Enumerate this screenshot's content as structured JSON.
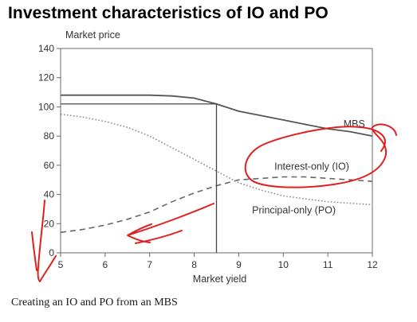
{
  "slide": {
    "title": "Investment characteristics of  IO and PO",
    "caption": "Creating an IO and PO from an MBS"
  },
  "chart_data": {
    "type": "line",
    "title": "",
    "xlabel": "Market yield",
    "ylabel": "Market price",
    "xlim": [
      5,
      12
    ],
    "ylim": [
      0,
      140
    ],
    "xticks": [
      5,
      6,
      7,
      8,
      9,
      10,
      11,
      12
    ],
    "yticks": [
      0,
      20,
      40,
      60,
      80,
      100,
      120,
      140
    ],
    "grid": false,
    "series": [
      {
        "name": "MBS",
        "style": "solid",
        "color": "#555555",
        "x": [
          5,
          6,
          7,
          7.5,
          8,
          8.5,
          9,
          9.5,
          10,
          10.5,
          11,
          11.5,
          12
        ],
        "y": [
          108,
          108,
          108,
          107.5,
          106,
          102,
          97,
          94,
          91,
          88,
          85,
          83,
          80
        ]
      },
      {
        "name": "Interest-only (IO)",
        "style": "dashed",
        "color": "#666666",
        "x": [
          5,
          5.5,
          6,
          6.5,
          7,
          7.5,
          8,
          8.5,
          9,
          9.5,
          10,
          10.5,
          11,
          11.5,
          12
        ],
        "y": [
          14,
          16,
          19,
          23,
          28,
          35,
          41,
          46,
          50,
          51,
          52,
          52,
          51,
          50,
          49
        ]
      },
      {
        "name": "Principal-only (PO)",
        "style": "dotted",
        "color": "#888888",
        "x": [
          5,
          5.5,
          6,
          6.5,
          7,
          7.5,
          8,
          8.5,
          9,
          9.5,
          10,
          10.5,
          11,
          11.5,
          12
        ],
        "y": [
          95,
          93,
          90,
          86,
          80,
          72,
          64,
          56,
          48,
          43,
          39,
          37,
          35,
          34,
          33
        ]
      }
    ],
    "reference_lines": {
      "x": 8.5,
      "y": 102
    },
    "annotations": {
      "handwriting_color": "#e02020",
      "circle_around": "Interest-only (IO)"
    }
  }
}
